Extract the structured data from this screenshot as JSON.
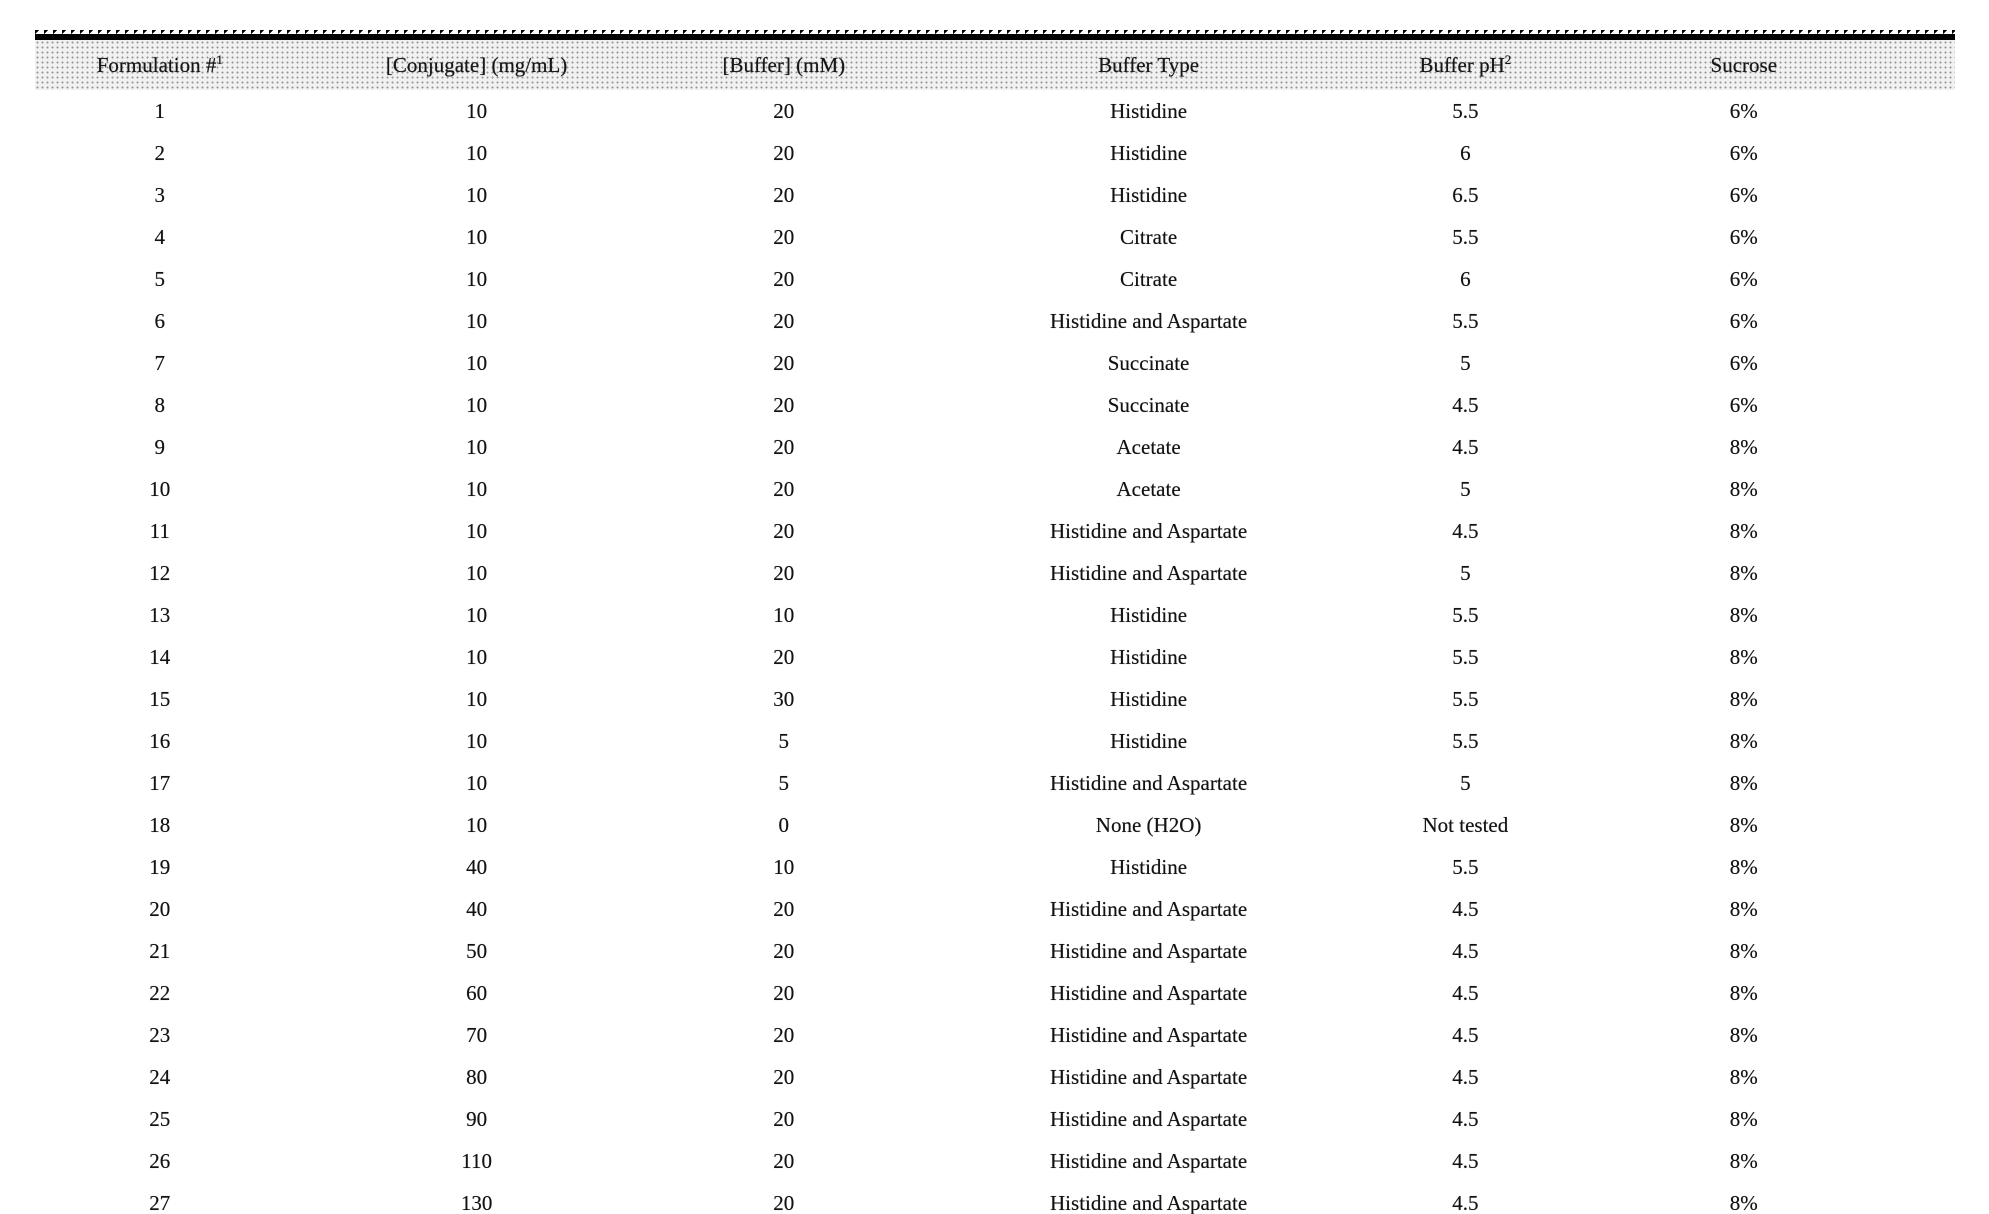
{
  "document": {
    "kind": "scanned formulation table"
  },
  "table": {
    "headers": [
      {
        "label": "Formulation #",
        "sup": "1"
      },
      {
        "label": "[Conjugate] (mg/mL)",
        "sup": ""
      },
      {
        "label": "[Buffer] (mM)",
        "sup": ""
      },
      {
        "label": "Buffer Type",
        "sup": ""
      },
      {
        "label": "Buffer pH",
        "sup": "2"
      },
      {
        "label": "Sucrose",
        "sup": ""
      }
    ],
    "rows": [
      [
        "1",
        "10",
        "20",
        "Histidine",
        "5.5",
        "6%"
      ],
      [
        "2",
        "10",
        "20",
        "Histidine",
        "6",
        "6%"
      ],
      [
        "3",
        "10",
        "20",
        "Histidine",
        "6.5",
        "6%"
      ],
      [
        "4",
        "10",
        "20",
        "Citrate",
        "5.5",
        "6%"
      ],
      [
        "5",
        "10",
        "20",
        "Citrate",
        "6",
        "6%"
      ],
      [
        "6",
        "10",
        "20",
        "Histidine and Aspartate",
        "5.5",
        "6%"
      ],
      [
        "7",
        "10",
        "20",
        "Succinate",
        "5",
        "6%"
      ],
      [
        "8",
        "10",
        "20",
        "Succinate",
        "4.5",
        "6%"
      ],
      [
        "9",
        "10",
        "20",
        "Acetate",
        "4.5",
        "8%"
      ],
      [
        "10",
        "10",
        "20",
        "Acetate",
        "5",
        "8%"
      ],
      [
        "11",
        "10",
        "20",
        "Histidine and Aspartate",
        "4.5",
        "8%"
      ],
      [
        "12",
        "10",
        "20",
        "Histidine and Aspartate",
        "5",
        "8%"
      ],
      [
        "13",
        "10",
        "10",
        "Histidine",
        "5.5",
        "8%"
      ],
      [
        "14",
        "10",
        "20",
        "Histidine",
        "5.5",
        "8%"
      ],
      [
        "15",
        "10",
        "30",
        "Histidine",
        "5.5",
        "8%"
      ],
      [
        "16",
        "10",
        "5",
        "Histidine",
        "5.5",
        "8%"
      ],
      [
        "17",
        "10",
        "5",
        "Histidine and Aspartate",
        "5",
        "8%"
      ],
      [
        "18",
        "10",
        "0",
        "None (H2O)",
        "Not tested",
        "8%"
      ],
      [
        "19",
        "40",
        "10",
        "Histidine",
        "5.5",
        "8%"
      ],
      [
        "20",
        "40",
        "20",
        "Histidine and Aspartate",
        "4.5",
        "8%"
      ],
      [
        "21",
        "50",
        "20",
        "Histidine and Aspartate",
        "4.5",
        "8%"
      ],
      [
        "22",
        "60",
        "20",
        "Histidine and Aspartate",
        "4.5",
        "8%"
      ],
      [
        "23",
        "70",
        "20",
        "Histidine and Aspartate",
        "4.5",
        "8%"
      ],
      [
        "24",
        "80",
        "20",
        "Histidine and Aspartate",
        "4.5",
        "8%"
      ],
      [
        "25",
        "90",
        "20",
        "Histidine and Aspartate",
        "4.5",
        "8%"
      ],
      [
        "26",
        "110",
        "20",
        "Histidine and Aspartate",
        "4.5",
        "8%"
      ],
      [
        "27",
        "130",
        "20",
        "Histidine and Aspartate",
        "4.5",
        "8%"
      ]
    ]
  },
  "colors": {
    "text": "#161616",
    "header_band": "#ededed",
    "rule": "#000000",
    "background": "#ffffff"
  }
}
